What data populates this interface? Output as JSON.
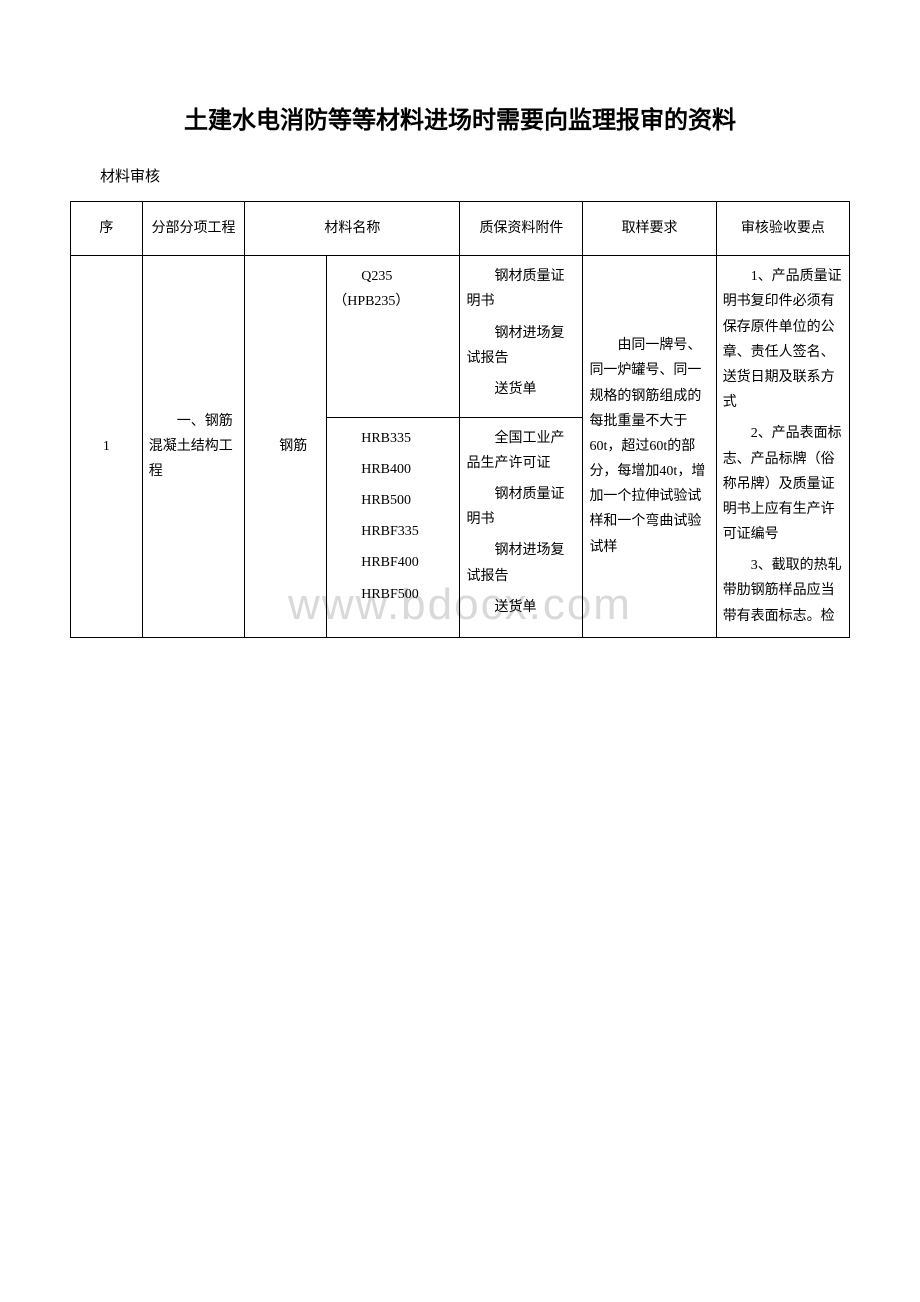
{
  "title": "土建水电消防等等材料进场时需要向监理报审的资料",
  "subtitle": "材料审核",
  "watermark": "www.bdocx.com",
  "headers": {
    "seq": "序",
    "project": "分部分项工程",
    "material": "材料名称",
    "quality": "质保资料附件",
    "sampling": "取样要求",
    "review": "审核验收要点"
  },
  "row1": {
    "seq": "1",
    "project": "一、钢筋混凝土结构工程",
    "material_main": "钢筋",
    "material_sub_a": "Q235（HPB235）",
    "quality_a_1": "钢材质量证明书",
    "quality_a_2": "钢材进场复试报告",
    "quality_a_3": "送货单",
    "material_sub_b_1": "HRB335",
    "material_sub_b_2": "HRB400",
    "material_sub_b_3": "HRB500",
    "material_sub_b_4": "HRBF335",
    "material_sub_b_5": "HRBF400",
    "material_sub_b_6": "HRBF500",
    "quality_b_1": "全国工业产品生产许可证",
    "quality_b_2": "钢材质量证明书",
    "quality_b_3": "钢材进场复试报告",
    "quality_b_4": "送货单",
    "sampling": "由同一牌号、同一炉罐号、同一规格的钢筋组成的每批重量不大于60t，超过60t的部分，每增加40t，增加一个拉伸试验试样和一个弯曲试验试样",
    "review_1": "1、产品质量证明书复印件必须有保存原件单位的公章、责任人签名、送货日期及联系方式",
    "review_2": "2、产品表面标志、产品标牌（俗称吊牌）及质量证明书上应有生产许可证编号",
    "review_3": "3、截取的热轧带肋钢筋样品应当带有表面标志。检"
  }
}
